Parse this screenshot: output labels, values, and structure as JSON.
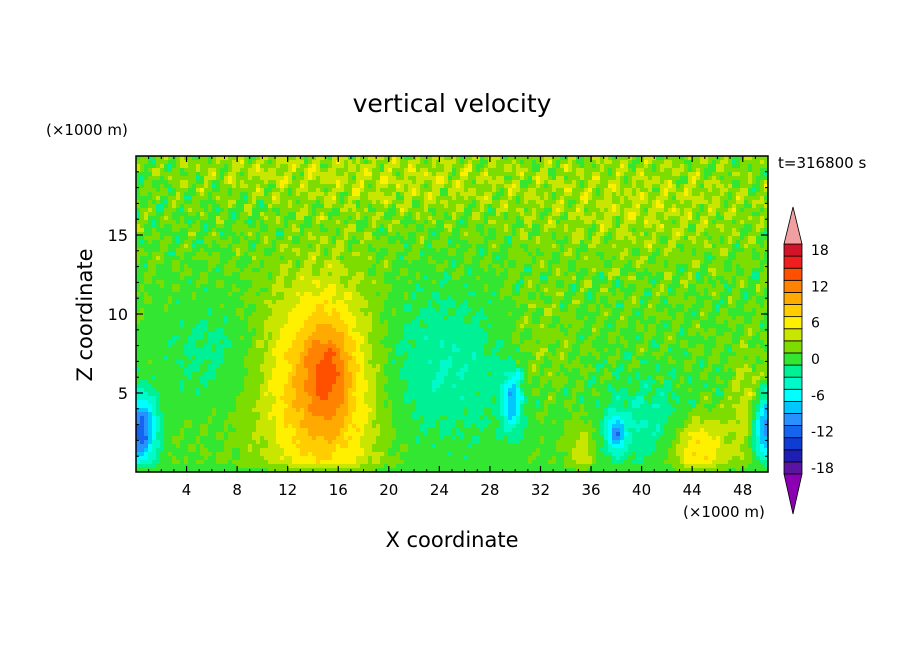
{
  "chart_data": {
    "type": "heatmap",
    "title": "vertical velocity",
    "xlabel": "X coordinate",
    "ylabel": "Z coordinate",
    "x_unit": "(×1000 m)",
    "y_unit": "(×1000 m)",
    "time_label": "t=316800 s",
    "xlim": [
      0,
      50
    ],
    "ylim": [
      0,
      20
    ],
    "x_ticks": [
      4,
      8,
      12,
      16,
      20,
      24,
      28,
      32,
      36,
      40,
      44,
      48
    ],
    "y_ticks": [
      5,
      10,
      15
    ],
    "colorbar": {
      "labels": [
        "18",
        "12",
        "6",
        "0",
        "-6",
        "-12",
        "-18"
      ],
      "label_values": [
        18,
        12,
        6,
        0,
        -6,
        -12,
        -18
      ],
      "range": [
        -21,
        21
      ],
      "extend": "both",
      "colors": [
        "#8c00b4",
        "#5a14a0",
        "#1e1eb4",
        "#0f3cd2",
        "#1464f0",
        "#2891ff",
        "#00c8ff",
        "#00ffff",
        "#00fac8",
        "#00f096",
        "#32e632",
        "#7ddc00",
        "#c8e600",
        "#fff000",
        "#ffcd00",
        "#ffaa00",
        "#ff8200",
        "#ff5000",
        "#f01e1e",
        "#d21428",
        "#f0a0a0"
      ]
    },
    "features": [
      {
        "kind": "updraft",
        "x": 14.8,
        "z": 5.5,
        "amplitude": 11,
        "sx": 3.2,
        "sz": 4.5
      },
      {
        "kind": "updraft",
        "x": 15.3,
        "z": 6.5,
        "amplitude": 4,
        "sx": 1.2,
        "sz": 2.0
      },
      {
        "kind": "updraft",
        "x": 44.5,
        "z": 1.6,
        "amplitude": 8,
        "sx": 1.6,
        "sz": 1.6
      },
      {
        "kind": "updraft",
        "x": 48.6,
        "z": 3.6,
        "amplitude": 5,
        "sx": 1.0,
        "sz": 2.3
      },
      {
        "kind": "updraft",
        "x": 35.3,
        "z": 1.5,
        "amplitude": 4,
        "sx": 0.8,
        "sz": 1.5
      },
      {
        "kind": "updraft",
        "x": 31.5,
        "z": 7.5,
        "amplitude": 2.5,
        "sx": 2.5,
        "sz": 3.0
      },
      {
        "kind": "downdraft",
        "x": 0.4,
        "z": 2.6,
        "amplitude": -13,
        "sx": 0.9,
        "sz": 1.6
      },
      {
        "kind": "downdraft",
        "x": 49.8,
        "z": 2.8,
        "amplitude": -13,
        "sx": 0.8,
        "sz": 1.6
      },
      {
        "kind": "downdraft",
        "x": 29.8,
        "z": 4.5,
        "amplitude": -9,
        "sx": 0.6,
        "sz": 1.4
      },
      {
        "kind": "downdraft",
        "x": 38.0,
        "z": 2.4,
        "amplitude": -9,
        "sx": 0.5,
        "sz": 0.8
      },
      {
        "kind": "downdraft",
        "x": 24.0,
        "z": 6.5,
        "amplitude": -4,
        "sx": 6.0,
        "sz": 3.5
      },
      {
        "kind": "downdraft",
        "x": 41.0,
        "z": 3.0,
        "amplitude": -4,
        "sx": 3.5,
        "sz": 2.0
      },
      {
        "kind": "downdraft",
        "x": 6.0,
        "z": 7.5,
        "amplitude": -2.5,
        "sx": 3.0,
        "sz": 2.5
      },
      {
        "kind": "updraft",
        "x": 22.0,
        "z": 18.5,
        "amplitude": 2.5,
        "sx": 6.0,
        "sz": 1.5
      },
      {
        "kind": "updraft",
        "x": 40.0,
        "z": 17.0,
        "amplitude": 2.5,
        "sx": 7.0,
        "sz": 2.5
      },
      {
        "kind": "updraft",
        "x": 10.0,
        "z": 19.0,
        "amplitude": 2.0,
        "sx": 5.0,
        "sz": 1.2
      }
    ]
  }
}
